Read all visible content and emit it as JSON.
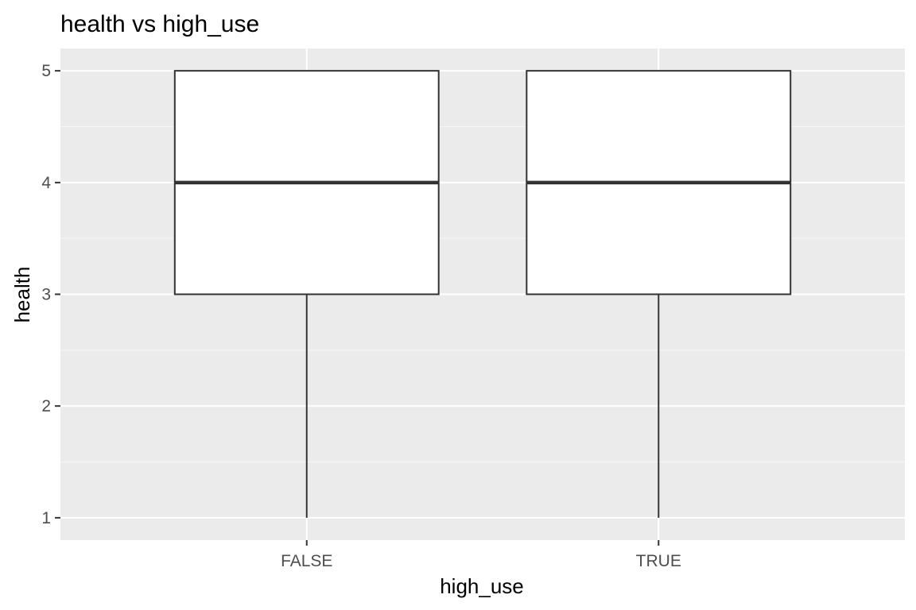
{
  "chart_data": {
    "type": "boxplot",
    "title": "health vs high_use",
    "xlabel": "high_use",
    "ylabel": "health",
    "categories": [
      "FALSE",
      "TRUE"
    ],
    "boxes": [
      {
        "category": "FALSE",
        "min": 1,
        "q1": 3,
        "median": 4,
        "q3": 5,
        "max": 5
      },
      {
        "category": "TRUE",
        "min": 1,
        "q1": 3,
        "median": 4,
        "q3": 5,
        "max": 5
      }
    ],
    "ylim": [
      0.8,
      5.2
    ],
    "yticks": [
      1,
      2,
      3,
      4,
      5
    ],
    "grid": true,
    "legend": "none",
    "colors": {
      "panel_background": "#ebebeb",
      "grid_major": "#ffffff",
      "grid_minor": "#f5f5f5",
      "box_fill": "#ffffff",
      "box_stroke": "#333333",
      "tick_label": "#4d4d4d"
    }
  }
}
